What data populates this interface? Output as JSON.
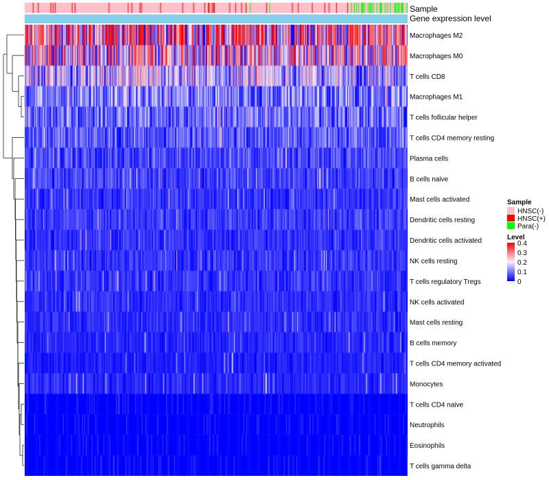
{
  "chart_data": {
    "type": "heatmap",
    "title": "",
    "annotation_tracks": [
      {
        "name": "Sample"
      },
      {
        "name": "Gene expression level"
      }
    ],
    "rows": [
      "Macrophages M2",
      "Macrophages M0",
      "T cells CD8",
      "Macrophages M1",
      "T cells follicular helper",
      "T cells CD4 memory resting",
      "Plasma cells",
      "B cells naive",
      "Mast cells activated",
      "Dendritic cells resting",
      "Dendritic cells activated",
      "NK cells resting",
      "T cells regulatory  Tregs",
      "NK cells activated",
      "Mast cells resting",
      "B cells memory",
      "T cells CD4 memory activated",
      "Monocytes",
      "T cells CD4 naive",
      "Neutrophils",
      "Eosinophils",
      "T cells gamma delta"
    ],
    "row_mean_levels": [
      0.26,
      0.2,
      0.14,
      0.1,
      0.09,
      0.07,
      0.06,
      0.05,
      0.04,
      0.045,
      0.04,
      0.04,
      0.04,
      0.035,
      0.035,
      0.03,
      0.025,
      0.03,
      0.005,
      0.01,
      0.005,
      0.003
    ],
    "color_scale": {
      "min": 0,
      "max": 0.4,
      "low_color": "#0000ff",
      "mid_color": "#f5f0ff",
      "high_color": "#ff0000",
      "ticks": [
        "0.4",
        "0.3",
        "0.2",
        "0.1",
        "0"
      ]
    },
    "legend": {
      "sample_title": "Sample",
      "sample_groups": [
        {
          "label": "HNSC(-)",
          "color": "#ffc0cb"
        },
        {
          "label": "HNSC(+)",
          "color": "#ff0000"
        },
        {
          "label": "Para(-)",
          "color": "#00ff00"
        }
      ],
      "level_title": "Level",
      "expression_color": "#87ceeb"
    },
    "dendrogram": "rows clustered (hierarchical)"
  }
}
